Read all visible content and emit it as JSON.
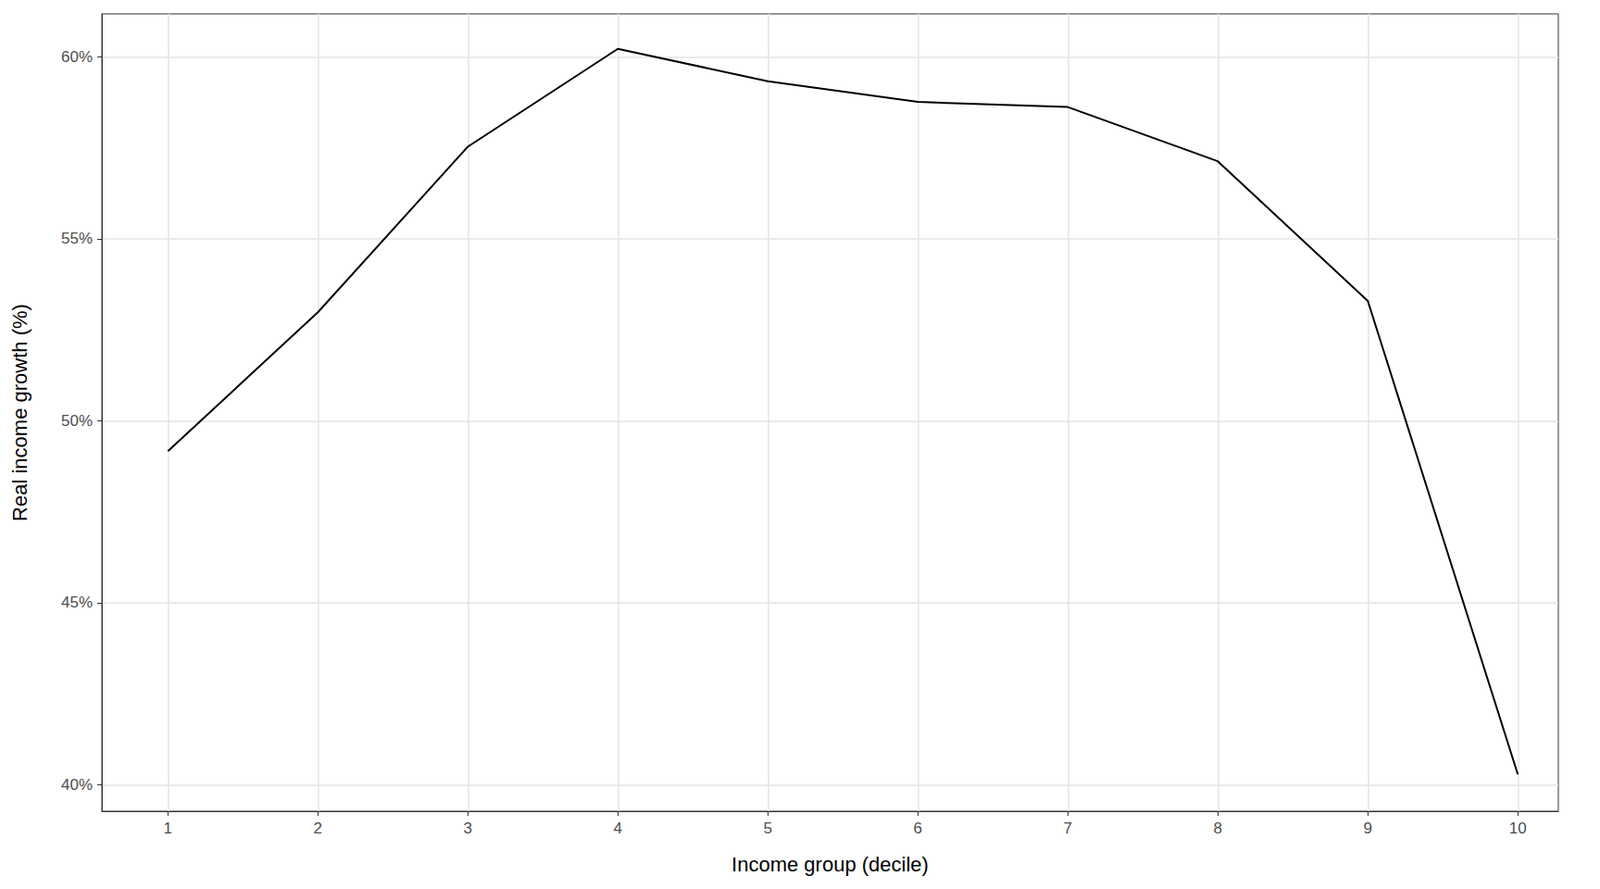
{
  "chart_data": {
    "type": "line",
    "x_label": "Income group (decile)",
    "y_label": "Real income growth (%)",
    "x": [
      1,
      2,
      3,
      4,
      5,
      6,
      7,
      8,
      9,
      10
    ],
    "values": [
      49.16,
      52.98,
      57.53,
      60.22,
      59.33,
      58.76,
      58.62,
      57.13,
      53.29,
      40.28
    ],
    "color": "#000000",
    "xlim": [
      0.56,
      10.27
    ],
    "xticks": [
      1,
      2,
      3,
      4,
      5,
      6,
      7,
      8,
      9,
      10
    ],
    "ylim": [
      39.27,
      61.18
    ],
    "yticks": [
      {
        "value": 40,
        "label": "40%"
      },
      {
        "value": 45,
        "label": "45%"
      },
      {
        "value": 50,
        "label": "50%"
      },
      {
        "value": 55,
        "label": "55%"
      },
      {
        "value": 60,
        "label": "60%"
      }
    ],
    "grid": true
  }
}
